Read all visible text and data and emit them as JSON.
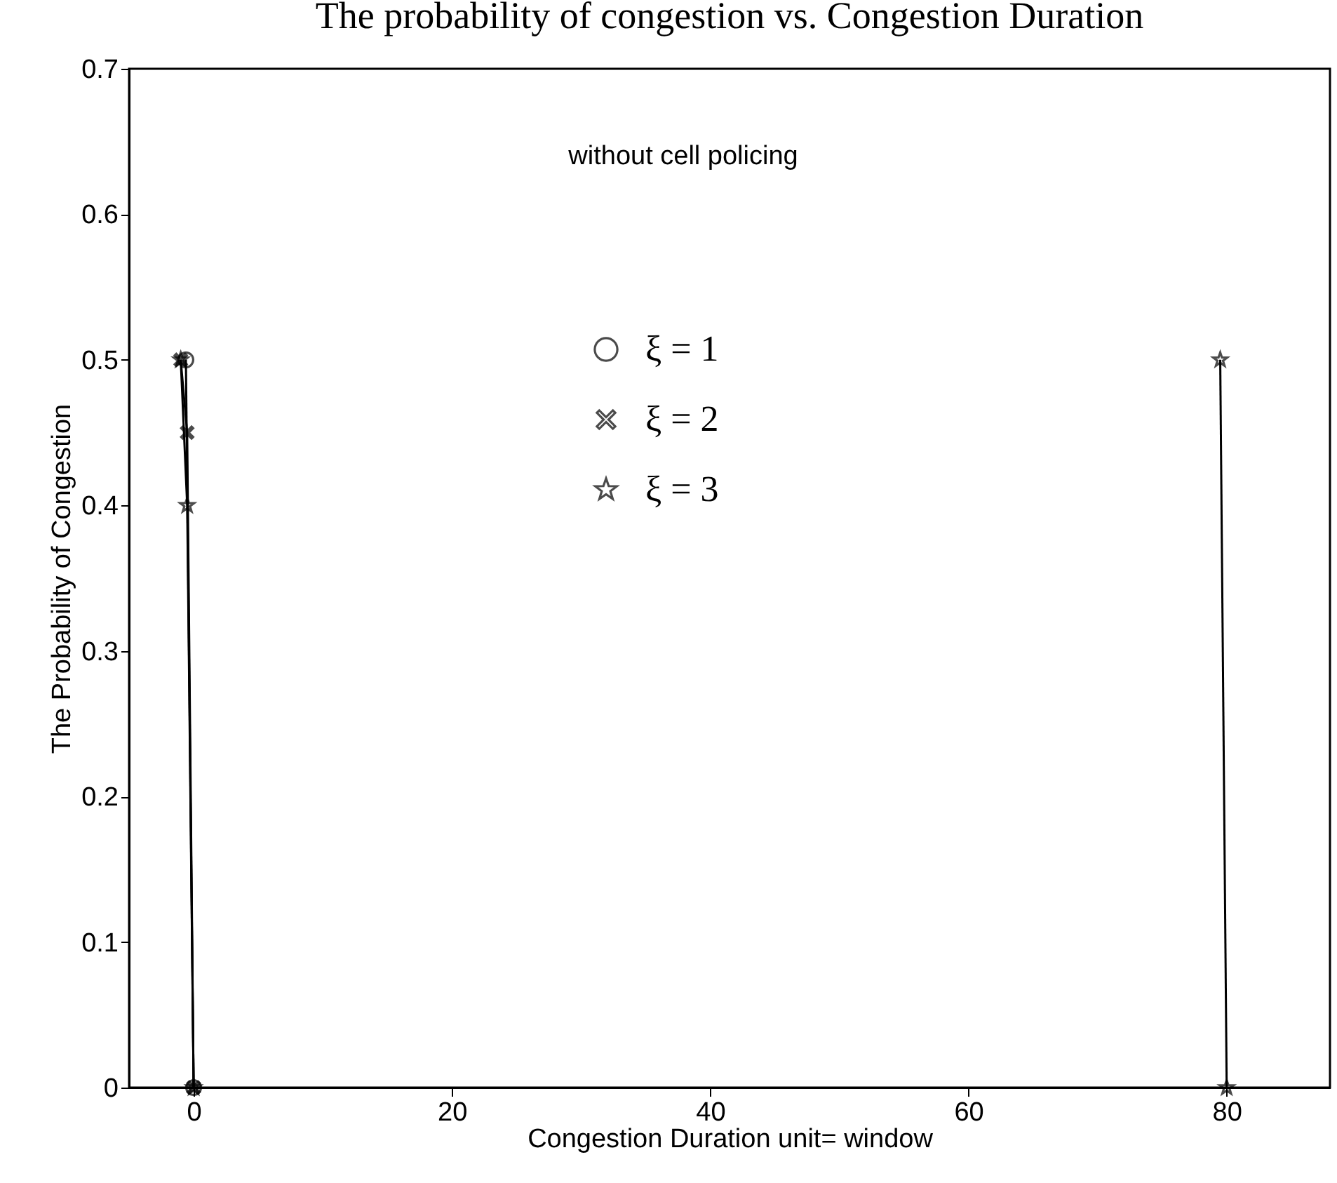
{
  "chart_data": {
    "type": "line",
    "title": "The probability of congestion  vs. Congestion Duration",
    "xlabel": "Congestion Duration   unit= window",
    "ylabel": "The Probability of Congestion",
    "annotations": [
      "without cell policing"
    ],
    "xlim": [
      -5,
      88
    ],
    "xticks": [
      0,
      20,
      40,
      60,
      80
    ],
    "ylim": [
      0,
      0.7
    ],
    "yticks": [
      0,
      0.1,
      0.2,
      0.3,
      0.4,
      0.5,
      0.6,
      0.7
    ],
    "legend": "top",
    "grid": false,
    "series": [
      {
        "name": "ξ  = 1",
        "color": "#000000",
        "marker": "circle",
        "x": [
          -0.6,
          0
        ],
        "values": [
          0.5,
          0
        ]
      },
      {
        "name": "ξ  = 2",
        "color": "#000000",
        "marker": "cross",
        "x": [
          -1,
          -0.5,
          0
        ],
        "values": [
          0.5,
          0.45,
          0
        ]
      },
      {
        "name": "ξ  = 3",
        "color": "#000000",
        "marker": "star",
        "x": [
          -1,
          -0.5,
          0,
          null,
          79.5,
          80
        ],
        "values": [
          0.5,
          0.4,
          0,
          null,
          0.5,
          0
        ]
      }
    ]
  }
}
